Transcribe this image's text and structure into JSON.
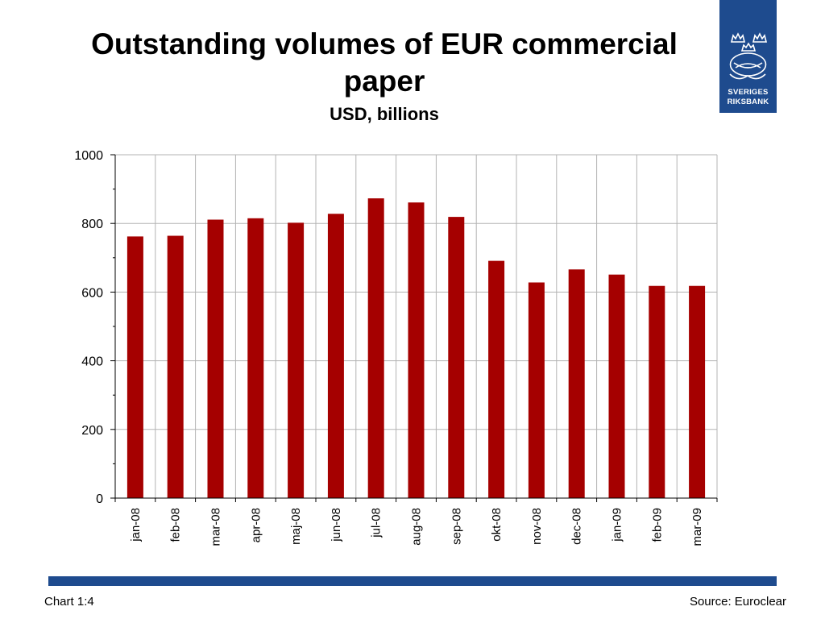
{
  "brand": {
    "name_line1": "SVERIGES",
    "name_line2": "RIKSBANK",
    "color": "#1e4b8e"
  },
  "footer": {
    "chart_label": "Chart 1:4",
    "source": "Source: Euroclear"
  },
  "chart_data": {
    "type": "bar",
    "title": "Outstanding volumes of EUR commercial paper",
    "subtitle": "USD, billions",
    "xlabel": "",
    "ylabel": "",
    "categories": [
      "jan-08",
      "feb-08",
      "mar-08",
      "apr-08",
      "maj-08",
      "jun-08",
      "jul-08",
      "aug-08",
      "sep-08",
      "okt-08",
      "nov-08",
      "dec-08",
      "jan-09",
      "feb-09",
      "mar-09"
    ],
    "values": [
      762,
      764,
      811,
      815,
      802,
      828,
      873,
      861,
      819,
      691,
      628,
      666,
      651,
      618,
      618
    ],
    "ylim": [
      0,
      1000
    ],
    "yticks": [
      0,
      200,
      400,
      600,
      800,
      1000
    ],
    "grid": true,
    "legend": "none",
    "bar_color": "#a50000"
  }
}
